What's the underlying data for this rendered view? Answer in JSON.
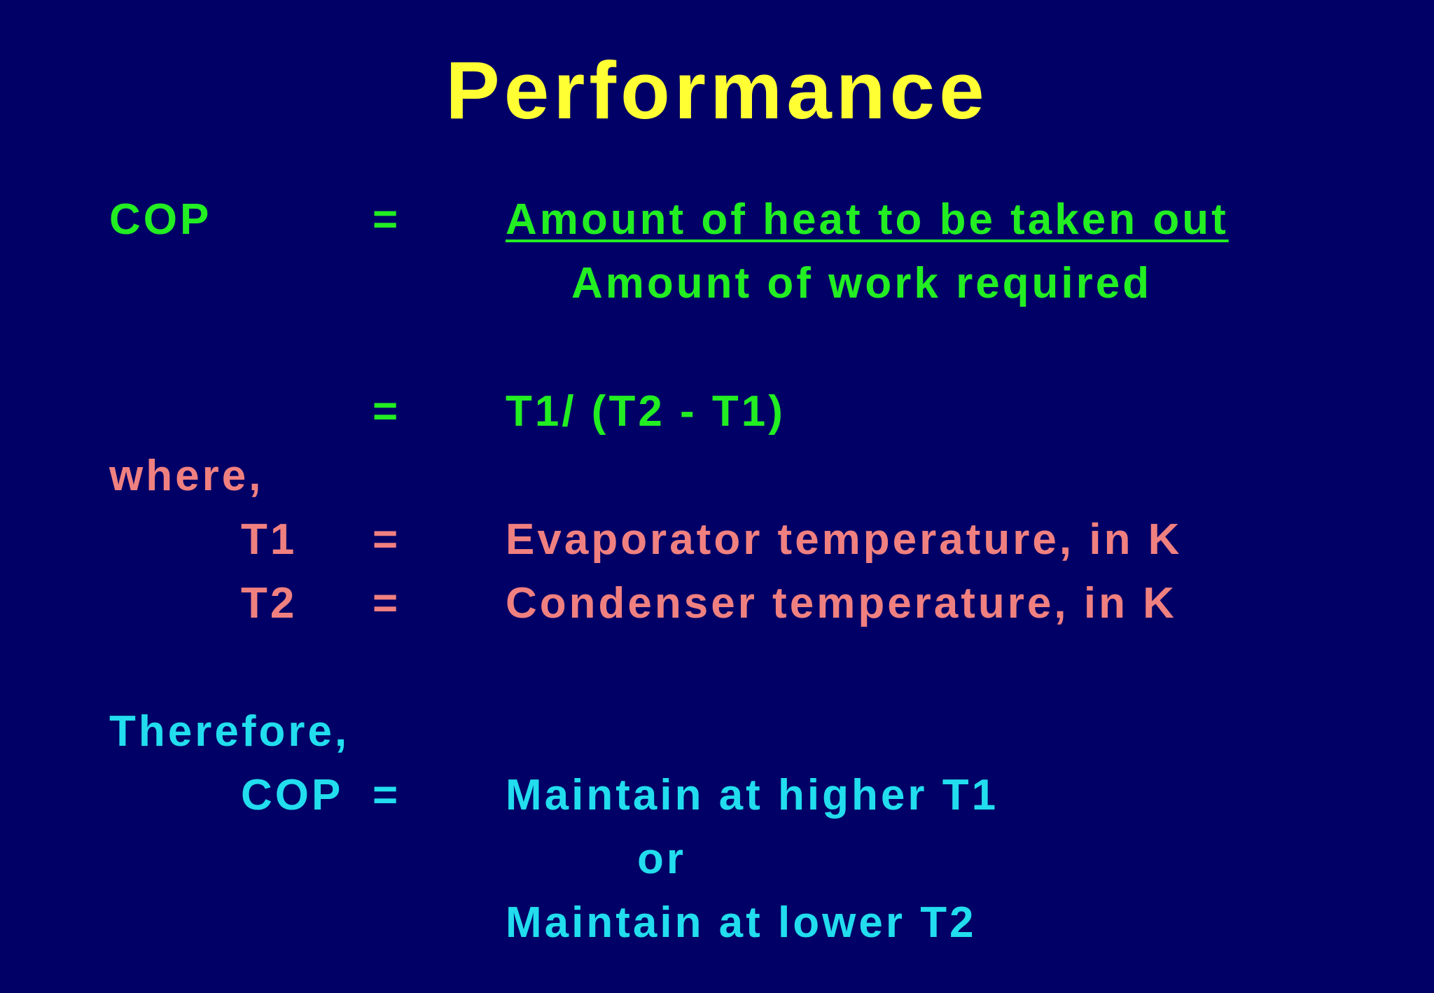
{
  "title": "Performance",
  "cop_definition": {
    "label": "COP",
    "equals": "=",
    "numerator": "Amount of heat to be taken out",
    "denominator": "Amount of work required"
  },
  "cop_formula": {
    "equals": "=",
    "expression": "T1/ (T2 - T1)"
  },
  "where": {
    "label": "where,",
    "items": [
      {
        "symbol": "T1",
        "equals": "=",
        "meaning": "Evaporator temperature, in K"
      },
      {
        "symbol": "T2",
        "equals": "=",
        "meaning": "Condenser temperature, in K"
      }
    ]
  },
  "therefore": {
    "label": "Therefore,",
    "symbol": "COP",
    "equals": "=",
    "option1": "Maintain at higher T1",
    "connector": "or",
    "option2": "Maintain at lower T2"
  },
  "colors": {
    "background": "#000066",
    "title": "#ffff33",
    "definition": "#22ee22",
    "where": "#f08080",
    "therefore": "#22ddee"
  }
}
